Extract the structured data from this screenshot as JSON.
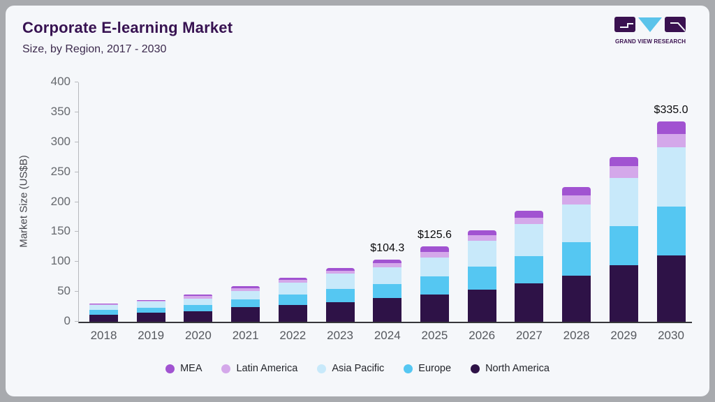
{
  "header": {
    "title": "Corporate E-learning Market",
    "subtitle": "Size, by Region, 2017 - 2030"
  },
  "logo": {
    "text": "GRAND VIEW RESEARCH",
    "brand_dark": "#3a1150",
    "brand_blue": "#5bc3ea"
  },
  "chart_data": {
    "type": "bar",
    "stacked": true,
    "title": "Corporate E-learning Market",
    "subtitle": "Size, by Region, 2017 - 2030",
    "ylabel": "Market Size (US$B)",
    "ylim": [
      0,
      400
    ],
    "yticks": [
      0,
      50,
      100,
      150,
      200,
      250,
      300,
      350,
      400
    ],
    "grid": false,
    "legend_position": "bottom",
    "categories": [
      "2018",
      "2019",
      "2020",
      "2021",
      "2022",
      "2023",
      "2024",
      "2025",
      "2026",
      "2027",
      "2028",
      "2029",
      "2030"
    ],
    "series": [
      {
        "name": "North America",
        "color": "#2e1247",
        "values": [
          12,
          15,
          17,
          24,
          28,
          32.5,
          39.5,
          46,
          54,
          64,
          77,
          95,
          110.5
        ]
      },
      {
        "name": "Europe",
        "color": "#55c7f2",
        "values": [
          8,
          8,
          11.5,
          13.5,
          17.5,
          22,
          24,
          30,
          38,
          45.5,
          56.5,
          65,
          82
        ]
      },
      {
        "name": "Asia Pacific",
        "color": "#c8e9fa",
        "values": [
          7.5,
          11,
          10,
          13.5,
          19.5,
          25.5,
          27,
          31.5,
          43,
          53.5,
          63,
          80,
          99.5
        ]
      },
      {
        "name": "Latin America",
        "color": "#d4a8ea",
        "values": [
          1.5,
          1.5,
          4.8,
          5.5,
          5,
          5,
          7.5,
          9,
          9.5,
          11,
          14.5,
          20,
          22
        ]
      },
      {
        "name": "MEA",
        "color": "#a153d1",
        "values": [
          1,
          1,
          2.7,
          3.5,
          4,
          4.5,
          6.3,
          9.1,
          8.5,
          11,
          14.5,
          15,
          21
        ]
      }
    ],
    "totals": [
      30,
      36.5,
      46,
      60,
      74,
      89.5,
      104.3,
      125.6,
      153,
      185,
      225.5,
      275,
      335
    ],
    "annotations": [
      {
        "category": "2024",
        "text": "$104.3"
      },
      {
        "category": "2025",
        "text": "$125.6"
      },
      {
        "category": "2030",
        "text": "$335.0"
      }
    ]
  }
}
